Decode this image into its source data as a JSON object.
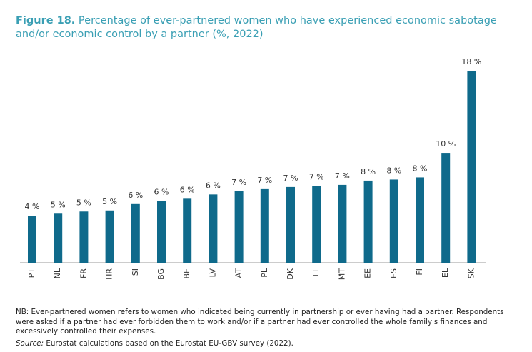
{
  "chart_data": {
    "type": "bar",
    "figure_label": "Figure 18.",
    "title": "Percentage of ever-partnered women who have experienced economic sabotage and/or economic control by a partner (%, 2022)",
    "categories": [
      "PT",
      "NL",
      "FR",
      "HR",
      "SI",
      "BG",
      "BE",
      "LV",
      "AT",
      "PL",
      "DK",
      "LT",
      "MT",
      "EE",
      "ES",
      "FI",
      "EL",
      "SK"
    ],
    "values": [
      4.4,
      4.6,
      4.8,
      4.9,
      5.5,
      5.8,
      6.0,
      6.4,
      6.7,
      6.9,
      7.1,
      7.2,
      7.3,
      7.7,
      7.8,
      8.0,
      10.3,
      18.0
    ],
    "value_labels": [
      "4 %",
      "5 %",
      "5 %",
      "5 %",
      "6 %",
      "6 %",
      "6 %",
      "6 %",
      "7 %",
      "7 %",
      "7 %",
      "7 %",
      "7 %",
      "8 %",
      "8 %",
      "8 %",
      "10 %",
      "18 %"
    ],
    "color": "#0f6a8b",
    "note": "NB: Ever-partnered women refers to women who indicated being currently in partnership or ever having had a partner. Respondents were asked if a partner had ever forbidden them to work and/or if a partner had ever controlled the whole family's finances and excessively controlled their expenses.",
    "source_label": "Source:",
    "source": "Eurostat calculations based on the Eurostat EU-GBV survey (2022)."
  }
}
